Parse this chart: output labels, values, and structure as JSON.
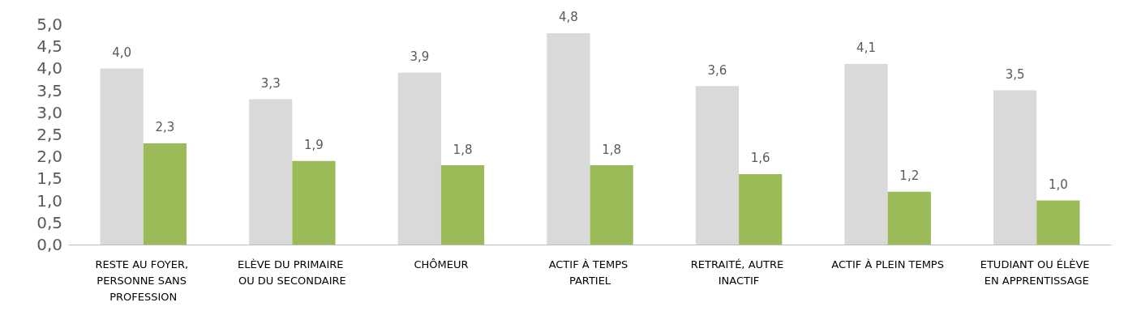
{
  "chart_data": {
    "type": "bar",
    "categories": [
      "RESTE AU FOYER, PERSONNE SANS PROFESSION",
      "ELÈVE DU PRIMAIRE OU DU SECONDAIRE",
      "CHÔMEUR",
      "ACTIF À TEMPS PARTIEL",
      "RETRAITÉ, AUTRE INACTIF",
      "ACTIF À PLEIN TEMPS",
      "ETUDIANT OU ÉLÈVE EN APPRENTISSAGE"
    ],
    "series": [
      {
        "color": "#d9d9d9",
        "values": [
          4.0,
          3.3,
          3.9,
          4.8,
          3.6,
          4.1,
          3.5
        ],
        "value_labels": [
          "4,0",
          "3,3",
          "3,9",
          "4,8",
          "3,6",
          "4,1",
          "3,5"
        ]
      },
      {
        "color": "#9bbb59",
        "values": [
          2.3,
          1.9,
          1.8,
          1.8,
          1.6,
          1.2,
          1.0
        ],
        "value_labels": [
          "2,3",
          "1,9",
          "1,8",
          "1,8",
          "1,6",
          "1,2",
          "1,0"
        ]
      }
    ],
    "ylim": [
      0,
      5
    ],
    "yticks": [
      {
        "value": 0,
        "label": "0,0"
      },
      {
        "value": 0.5,
        "label": "0,5"
      },
      {
        "value": 1,
        "label": "1,0"
      },
      {
        "value": 1.5,
        "label": "1,5"
      },
      {
        "value": 2,
        "label": "2,0"
      },
      {
        "value": 2.5,
        "label": "2,5"
      },
      {
        "value": 3,
        "label": "3,0"
      },
      {
        "value": 3.5,
        "label": "3,5"
      },
      {
        "value": 4,
        "label": "4,0"
      },
      {
        "value": 4.5,
        "label": "4,5"
      },
      {
        "value": 5,
        "label": "5,0"
      }
    ],
    "grid": false
  }
}
